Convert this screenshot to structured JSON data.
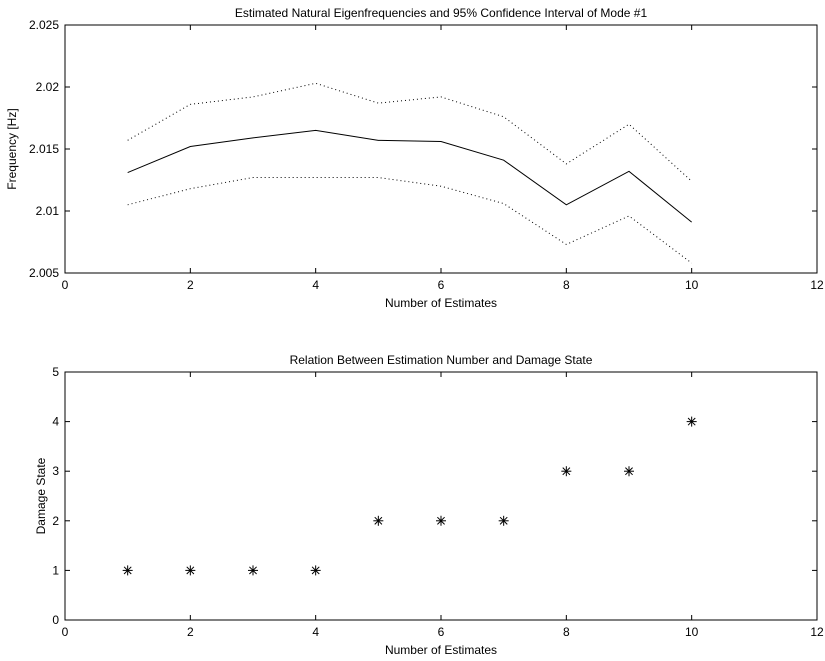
{
  "chart_data": [
    {
      "type": "line",
      "title": "Estimated Natural Eigenfrequencies and 95% Confidence Interval of Mode #1",
      "xlabel": "Number of Estimates",
      "ylabel": "Frequency [Hz]",
      "xlim": [
        0,
        12
      ],
      "ylim": [
        2.005,
        2.025
      ],
      "xticks": [
        "0",
        "2",
        "4",
        "6",
        "8",
        "10",
        "12"
      ],
      "yticks": [
        "2.005",
        "2.01",
        "2.015",
        "2.02",
        "2.025"
      ],
      "grid": false,
      "x": [
        1,
        2,
        3,
        4,
        5,
        6,
        7,
        8,
        9,
        10
      ],
      "series": [
        {
          "style": "solid",
          "color": "#000000",
          "values": [
            2.0131,
            2.0152,
            2.0159,
            2.0165,
            2.0157,
            2.0156,
            2.0141,
            2.0105,
            2.0132,
            2.0091
          ]
        },
        {
          "style": "dotted",
          "color": "#000000",
          "values": [
            2.0157,
            2.0186,
            2.0192,
            2.0203,
            2.0187,
            2.0192,
            2.0176,
            2.0138,
            2.017,
            2.0124
          ]
        },
        {
          "style": "dotted",
          "color": "#000000",
          "values": [
            2.0105,
            2.0118,
            2.0127,
            2.0127,
            2.0127,
            2.012,
            2.0106,
            2.0073,
            2.0096,
            2.0058
          ]
        }
      ]
    },
    {
      "type": "scatter",
      "title": "Relation Between Estimation Number and Damage State",
      "xlabel": "Number of Estimates",
      "ylabel": "Damage State",
      "xlim": [
        0,
        12
      ],
      "ylim": [
        0,
        5
      ],
      "xticks": [
        "0",
        "2",
        "4",
        "6",
        "8",
        "10",
        "12"
      ],
      "yticks": [
        "0",
        "1",
        "2",
        "3",
        "4",
        "5"
      ],
      "grid": false,
      "marker": "asterisk",
      "x": [
        1,
        2,
        3,
        4,
        5,
        6,
        7,
        8,
        9,
        10
      ],
      "y": [
        1,
        1,
        1,
        1,
        2,
        2,
        2,
        3,
        3,
        4
      ]
    }
  ]
}
